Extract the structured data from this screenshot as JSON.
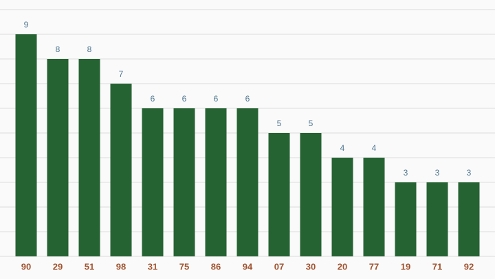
{
  "chart_data": {
    "type": "bar",
    "categories": [
      "90",
      "29",
      "51",
      "98",
      "31",
      "75",
      "86",
      "94",
      "07",
      "30",
      "20",
      "77",
      "19",
      "71",
      "92"
    ],
    "values": [
      9,
      8,
      8,
      7,
      6,
      6,
      6,
      6,
      5,
      5,
      4,
      4,
      3,
      3,
      3
    ],
    "color": "#256332",
    "ylim": [
      0,
      10
    ],
    "yticks": [
      0,
      1,
      2,
      3,
      4,
      5,
      6,
      7,
      8,
      9,
      10
    ],
    "grid": true
  }
}
